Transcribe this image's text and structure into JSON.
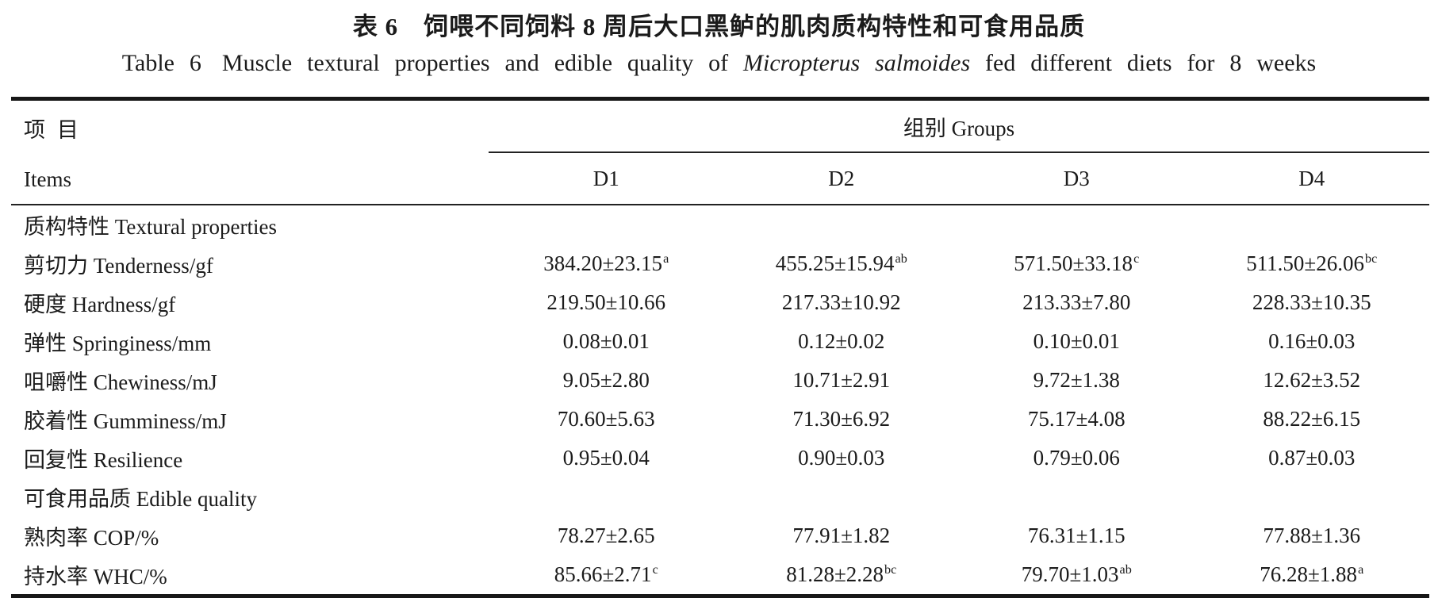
{
  "titles": {
    "zh": "表 6　饲喂不同饲料 8 周后大口黑鲈的肌肉质构特性和可食用品质",
    "en_label": "Table 6",
    "en_pre": "Muscle textural properties and edible quality of",
    "en_italic": "Micropterus salmoides",
    "en_post": "fed different diets for 8 weeks"
  },
  "table": {
    "items_header_zh": "项目",
    "items_header_en": "Items",
    "groups_header": "组别 Groups",
    "group_columns": [
      "D1",
      "D2",
      "D3",
      "D4"
    ],
    "rows": [
      {
        "label": "质构特性 Textural properties",
        "section": true,
        "values": []
      },
      {
        "label": "剪切力 Tenderness/gf",
        "section": false,
        "values": [
          "384.20±23.15^a",
          "455.25±15.94^ab",
          "571.50±33.18^c",
          "511.50±26.06^bc"
        ]
      },
      {
        "label": "硬度 Hardness/gf",
        "section": false,
        "values": [
          "219.50±10.66",
          "217.33±10.92",
          "213.33±7.80",
          "228.33±10.35"
        ]
      },
      {
        "label": "弹性 Springiness/mm",
        "section": false,
        "values": [
          "0.08±0.01",
          "0.12±0.02",
          "0.10±0.01",
          "0.16±0.03"
        ]
      },
      {
        "label": "咀嚼性 Chewiness/mJ",
        "section": false,
        "values": [
          "9.05±2.80",
          "10.71±2.91",
          "9.72±1.38",
          "12.62±3.52"
        ]
      },
      {
        "label": "胶着性 Gumminess/mJ",
        "section": false,
        "values": [
          "70.60±5.63",
          "71.30±6.92",
          "75.17±4.08",
          "88.22±6.15"
        ]
      },
      {
        "label": "回复性 Resilience",
        "section": false,
        "values": [
          "0.95±0.04",
          "0.90±0.03",
          "0.79±0.06",
          "0.87±0.03"
        ]
      },
      {
        "label": "可食用品质 Edible quality",
        "section": true,
        "values": []
      },
      {
        "label": "熟肉率 COP/%",
        "section": false,
        "values": [
          "78.27±2.65",
          "77.91±1.82",
          "76.31±1.15",
          "77.88±1.36"
        ]
      },
      {
        "label": "持水率 WHC/%",
        "section": false,
        "values": [
          "85.66±2.71^c",
          "81.28±2.28^bc",
          "79.70±1.03^ab",
          "76.28±1.88^a"
        ]
      }
    ]
  }
}
